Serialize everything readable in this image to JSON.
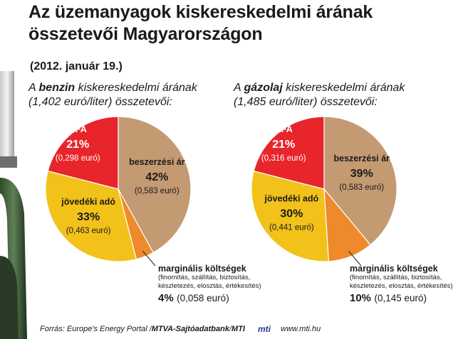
{
  "title_line1": "Az üzemanyagok kiskereskedelmi árának",
  "title_line2": "összetevői Magyarországon",
  "date": "(2012. január 19.)",
  "left_subtitle": {
    "pre": "A ",
    "fuel": "benzin",
    "post": " kiskereskedelmi árának",
    "line2": "(1,402 euró/liter) összetevői:"
  },
  "right_subtitle": {
    "pre": "A ",
    "fuel": "gázolaj",
    "post": " kiskereskedelmi árának",
    "line2": "(1,485 euró/liter) összetevői:"
  },
  "colors": {
    "beszerzesi": "#c49a72",
    "marginalis": "#ee8a2b",
    "jovedeki": "#f2c21a",
    "afa": "#e8252b",
    "text_on_red": "#ffffff"
  },
  "chart_data": [
    {
      "type": "pie",
      "title": "A benzin kiskereskedelmi árának (1,402 euró/liter) összetevői:",
      "slices": [
        {
          "name": "beszerzési ár",
          "percent": 42,
          "pct_label": "42%",
          "euro_label": "(0,583 euró)",
          "color": "#c49a72"
        },
        {
          "name": "marginális költségek",
          "percent": 4,
          "pct_label": "4%",
          "euro_label": "(0,058 euró)",
          "color": "#ee8a2b"
        },
        {
          "name": "jövedéki adó",
          "percent": 33,
          "pct_label": "33%",
          "euro_label": "(0,463 euró)",
          "color": "#f2c21a"
        },
        {
          "name": "ÁFA",
          "percent": 21,
          "pct_label": "21%",
          "euro_label": "(0,298 euró)",
          "color": "#e8252b"
        }
      ]
    },
    {
      "type": "pie",
      "title": "A gázolaj kiskereskedelmi árának (1,485 euró/liter) összetevői:",
      "slices": [
        {
          "name": "beszerzési ár",
          "percent": 39,
          "pct_label": "39%",
          "euro_label": "(0,583 euró)",
          "color": "#c49a72"
        },
        {
          "name": "marginális költségek",
          "percent": 10,
          "pct_label": "10%",
          "euro_label": "(0,145 euró)",
          "color": "#ee8a2b"
        },
        {
          "name": "jövedéki adó",
          "percent": 30,
          "pct_label": "30%",
          "euro_label": "(0,441 euró)",
          "color": "#f2c21a"
        },
        {
          "name": "ÁFA",
          "percent": 21,
          "pct_label": "21%",
          "euro_label": "(0,316 euró)",
          "color": "#e8252b"
        }
      ]
    }
  ],
  "marginal_note": "(finomítás, szállítás, biztosítás, készletezés, elosztás, értékesítés)",
  "marginal_note_line1": "(finomítás, szállítás, biztosítás,",
  "marginal_note_line2": "készletezés, elosztás, értékesítés)",
  "footer": {
    "source_pre": "Forrás: Europe's Energy Portal / ",
    "source_bold1": "MTVA-Sajtóadatbank",
    "source_sep": " / ",
    "source_bold2": "MTI",
    "logo": "mti",
    "url": "www.mti.hu"
  }
}
